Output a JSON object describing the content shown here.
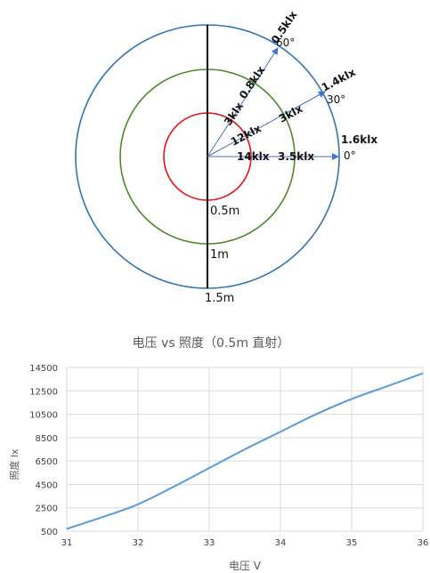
{
  "diagram": {
    "distances": [
      "0.5m",
      "1m",
      "1.5m"
    ],
    "angles": [
      "0°",
      "30°",
      "60°"
    ],
    "illuminance_0deg": [
      "14klx",
      "3.5klx",
      "1.6klx"
    ],
    "illuminance_30deg": [
      "12klx",
      "3klx",
      "1.4klx"
    ],
    "illuminance_60deg": [
      "3klx",
      "0.8klx",
      "0.5klx"
    ],
    "circle_colors": {
      "inner": "#e81010",
      "middle": "#4a8a2a",
      "outer": "#2e75b6"
    },
    "arrow_color": "#4472c4"
  },
  "chart_data": {
    "type": "line",
    "title": "电压 vs 照度（0.5m 直射）",
    "xlabel": "电压 V",
    "ylabel": "照度 lx",
    "xlim": [
      31,
      36
    ],
    "ylim": [
      500,
      14500
    ],
    "xticks": [
      31,
      32,
      33,
      34,
      35,
      36
    ],
    "yticks": [
      500,
      2500,
      4500,
      6500,
      8500,
      10500,
      12500,
      14500
    ],
    "grid": true,
    "line_color": "#5b9bd5",
    "series": [
      {
        "x": [
          31,
          31.5,
          32,
          32.5,
          33,
          33.5,
          34,
          34.5,
          35,
          35.5,
          36
        ],
        "y": [
          700,
          1700,
          2800,
          4300,
          5900,
          7500,
          9000,
          10500,
          11800,
          12900,
          14000
        ]
      }
    ]
  }
}
